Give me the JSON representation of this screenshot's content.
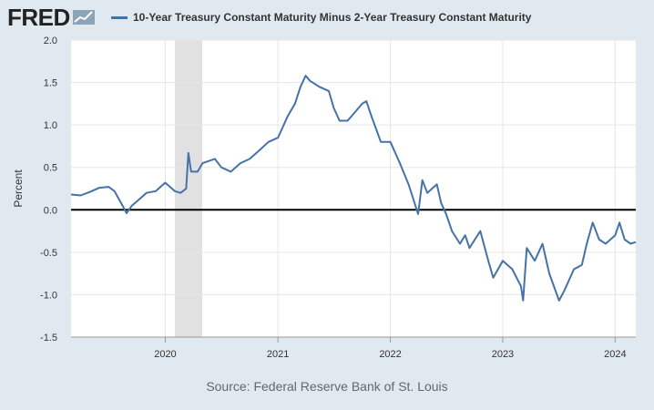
{
  "header": {
    "logo_text": "FRED"
  },
  "colors": {
    "series": "#4572a7",
    "recession": "#e1e1e1",
    "background": "#e1e9f0",
    "plot": "#ffffff",
    "zero_line": "#000000"
  },
  "icons": {
    "logo_mark": "trend-line-icon"
  },
  "source": "Source: Federal Reserve Bank of St. Louis",
  "chart_data": {
    "type": "line",
    "title": "",
    "xlabel": "",
    "ylabel": "Percent",
    "ylim": [
      -1.5,
      2.0
    ],
    "xlim": [
      "2019-03",
      "2024-03"
    ],
    "y_ticks": [
      "2.0",
      "1.5",
      "1.0",
      "0.5",
      "0.0",
      "-0.5",
      "-1.0",
      "-1.5"
    ],
    "x_ticks": [
      "2020",
      "2021",
      "2022",
      "2023",
      "2024"
    ],
    "grid": true,
    "legend": "top-left",
    "series": [
      {
        "name": "10-Year Treasury Constant Maturity Minus 2-Year Treasury Constant Maturity",
        "color": "#4572a7",
        "points": [
          [
            "2019-03-01",
            0.18
          ],
          [
            "2019-04-01",
            0.17
          ],
          [
            "2019-05-01",
            0.21
          ],
          [
            "2019-06-01",
            0.26
          ],
          [
            "2019-07-01",
            0.27
          ],
          [
            "2019-07-20",
            0.22
          ],
          [
            "2019-08-15",
            0.05
          ],
          [
            "2019-08-28",
            -0.04
          ],
          [
            "2019-09-15",
            0.05
          ],
          [
            "2019-10-01",
            0.1
          ],
          [
            "2019-11-01",
            0.2
          ],
          [
            "2019-12-01",
            0.22
          ],
          [
            "2020-01-01",
            0.32
          ],
          [
            "2020-02-01",
            0.22
          ],
          [
            "2020-02-20",
            0.2
          ],
          [
            "2020-03-09",
            0.25
          ],
          [
            "2020-03-16",
            0.67
          ],
          [
            "2020-03-25",
            0.45
          ],
          [
            "2020-04-15",
            0.45
          ],
          [
            "2020-05-01",
            0.55
          ],
          [
            "2020-06-10",
            0.6
          ],
          [
            "2020-07-01",
            0.5
          ],
          [
            "2020-08-01",
            0.45
          ],
          [
            "2020-09-01",
            0.55
          ],
          [
            "2020-10-01",
            0.6
          ],
          [
            "2020-11-01",
            0.7
          ],
          [
            "2020-12-01",
            0.8
          ],
          [
            "2021-01-01",
            0.85
          ],
          [
            "2021-02-01",
            1.1
          ],
          [
            "2021-02-25",
            1.25
          ],
          [
            "2021-03-15",
            1.45
          ],
          [
            "2021-04-01",
            1.58
          ],
          [
            "2021-04-15",
            1.52
          ],
          [
            "2021-05-15",
            1.45
          ],
          [
            "2021-06-15",
            1.4
          ],
          [
            "2021-07-01",
            1.2
          ],
          [
            "2021-07-20",
            1.05
          ],
          [
            "2021-08-15",
            1.05
          ],
          [
            "2021-09-01",
            1.12
          ],
          [
            "2021-10-01",
            1.25
          ],
          [
            "2021-10-15",
            1.28
          ],
          [
            "2021-11-01",
            1.1
          ],
          [
            "2021-12-01",
            0.8
          ],
          [
            "2022-01-01",
            0.8
          ],
          [
            "2022-02-01",
            0.55
          ],
          [
            "2022-03-01",
            0.3
          ],
          [
            "2022-03-10",
            0.2
          ],
          [
            "2022-04-01",
            -0.05
          ],
          [
            "2022-04-15",
            0.35
          ],
          [
            "2022-05-01",
            0.2
          ],
          [
            "2022-06-01",
            0.3
          ],
          [
            "2022-06-15",
            0.08
          ],
          [
            "2022-07-01",
            -0.05
          ],
          [
            "2022-07-20",
            -0.25
          ],
          [
            "2022-08-15",
            -0.4
          ],
          [
            "2022-09-01",
            -0.3
          ],
          [
            "2022-09-15",
            -0.45
          ],
          [
            "2022-10-20",
            -0.25
          ],
          [
            "2022-11-15",
            -0.6
          ],
          [
            "2022-12-01",
            -0.8
          ],
          [
            "2023-01-01",
            -0.6
          ],
          [
            "2023-02-01",
            -0.7
          ],
          [
            "2023-03-01",
            -0.9
          ],
          [
            "2023-03-08",
            -1.07
          ],
          [
            "2023-03-20",
            -0.45
          ],
          [
            "2023-04-15",
            -0.6
          ],
          [
            "2023-05-10",
            -0.4
          ],
          [
            "2023-06-01",
            -0.75
          ],
          [
            "2023-07-03",
            -1.07
          ],
          [
            "2023-07-20",
            -0.95
          ],
          [
            "2023-08-20",
            -0.7
          ],
          [
            "2023-09-15",
            -0.65
          ],
          [
            "2023-10-01",
            -0.4
          ],
          [
            "2023-10-20",
            -0.15
          ],
          [
            "2023-11-10",
            -0.35
          ],
          [
            "2023-12-01",
            -0.4
          ],
          [
            "2024-01-01",
            -0.3
          ],
          [
            "2024-01-15",
            -0.15
          ],
          [
            "2024-02-01",
            -0.35
          ],
          [
            "2024-02-20",
            -0.4
          ],
          [
            "2024-03-08",
            -0.38
          ]
        ]
      }
    ],
    "recessions": [
      [
        "2020-02-01",
        "2020-04-30"
      ]
    ]
  }
}
